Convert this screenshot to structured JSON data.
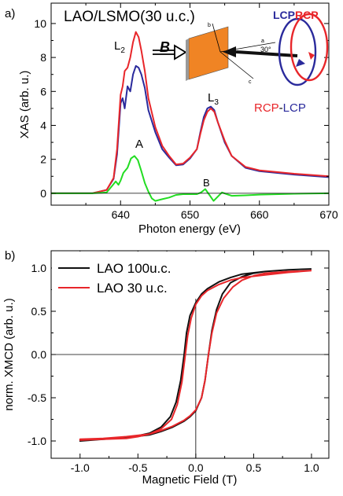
{
  "chart_data": [
    {
      "panel_label": "a)",
      "type": "line",
      "title": "LAO/LSMO(30 u.c.)",
      "xlabel": "Photon energy (eV)",
      "ylabel": "XAS (arb. u.)",
      "xlim": [
        630,
        670
      ],
      "ylim": [
        -0.7,
        11.2
      ],
      "xticks": [
        "640",
        "650",
        "660",
        "670"
      ],
      "yticks": [
        "0",
        "2",
        "4",
        "6",
        "8",
        "10"
      ],
      "annotations": {
        "l2": "L",
        "l2_sub": "2",
        "l3": "L",
        "l3_sub": "3",
        "peak_a": "A",
        "peak_b": "B",
        "field": "B",
        "lcp": "LCP",
        "rcp": "RCP",
        "diff_rcp": "RCP",
        "diff_dash": "-",
        "diff_lcp": "LCP",
        "axis_a": "a",
        "axis_b": "b",
        "axis_c": "c",
        "angle": "30°"
      },
      "colors": {
        "rcp": "#e8262a",
        "lcp": "#2a2a9c",
        "diff": "#22dd22",
        "sample": "#f08424"
      },
      "series": [
        {
          "name": "RCP",
          "x": [
            630,
            636,
            638,
            639,
            639.5,
            640,
            640.3,
            640.6,
            641,
            641.4,
            641.8,
            642.2,
            642.6,
            643,
            643.5,
            644,
            645,
            646,
            647,
            648,
            649,
            650,
            651,
            651.5,
            652,
            652.5,
            653,
            653.5,
            654,
            655,
            656,
            658,
            660,
            665,
            670
          ],
          "y": [
            0,
            0.01,
            0.2,
            0.9,
            2.6,
            5.8,
            6.3,
            7.2,
            7.4,
            8.0,
            8.9,
            9.5,
            9.2,
            8.4,
            7.2,
            5.6,
            3.9,
            2.8,
            2.2,
            1.7,
            1.75,
            2.1,
            2.6,
            3.5,
            4.3,
            4.8,
            5.0,
            4.8,
            4.2,
            3.1,
            2.2,
            1.55,
            1.35,
            1.15,
            1.0
          ]
        },
        {
          "name": "LCP",
          "x": [
            630,
            636,
            638,
            639,
            639.5,
            640,
            640.3,
            640.6,
            641,
            641.4,
            641.8,
            642.2,
            642.6,
            643,
            643.5,
            644,
            645,
            646,
            647,
            648,
            649,
            650,
            651,
            651.5,
            652,
            652.5,
            653,
            653.5,
            654,
            655,
            656,
            658,
            660,
            665,
            670
          ],
          "y": [
            0,
            0.01,
            0.2,
            0.85,
            2.3,
            5.3,
            5.6,
            5.0,
            6.3,
            6.0,
            7.0,
            7.5,
            7.4,
            7.0,
            6.2,
            4.9,
            3.6,
            2.6,
            2.1,
            1.65,
            1.7,
            2.05,
            2.6,
            3.6,
            4.5,
            5.0,
            5.1,
            4.9,
            4.2,
            3.0,
            2.2,
            1.5,
            1.3,
            1.1,
            0.95
          ]
        },
        {
          "name": "RCP-LCP",
          "x": [
            630,
            636,
            638,
            638.8,
            639.3,
            639.7,
            640,
            640.4,
            641,
            641.5,
            642,
            642.5,
            643,
            643.5,
            644,
            644.5,
            645,
            646,
            647,
            648,
            649,
            650,
            651,
            651.6,
            652.2,
            652.8,
            653.4,
            654,
            654.6,
            655.3,
            656,
            658,
            660,
            665,
            670
          ],
          "y": [
            0,
            0,
            0.05,
            0.45,
            0.7,
            0.5,
            0.75,
            1.2,
            1.5,
            2.05,
            2.2,
            1.95,
            1.3,
            0.6,
            0.1,
            -0.3,
            -0.45,
            -0.35,
            -0.25,
            -0.1,
            -0.05,
            -0.05,
            -0.05,
            0.05,
            0.25,
            -0.1,
            -0.45,
            -0.2,
            0.05,
            -0.05,
            -0.15,
            -0.12,
            -0.08,
            -0.03,
            0
          ]
        }
      ]
    },
    {
      "panel_label": "b)",
      "type": "line",
      "xlabel": "Magnetic Field (T)",
      "ylabel": "norm. XMCD (arb. u.)",
      "xlim": [
        -1.25,
        1.15
      ],
      "ylim": [
        -1.2,
        1.2
      ],
      "xticks": [
        "-1.0",
        "-0.5",
        "0.0",
        "0.5",
        "1.0"
      ],
      "yticks": [
        "-1.0",
        "-0.5",
        "0.0",
        "0.5",
        "1.0"
      ],
      "legend_position": "top-left",
      "colors": {
        "lao100": "#111111",
        "lao30": "#e8262a"
      },
      "series": [
        {
          "name": "LAO 100u.c.",
          "x_down": [
            1.0,
            0.8,
            0.6,
            0.4,
            0.3,
            0.2,
            0.1,
            0.05,
            0.0,
            -0.05,
            -0.08,
            -0.1,
            -0.13,
            -0.17,
            -0.22,
            -0.3,
            -0.4,
            -0.5,
            -0.6,
            -0.8,
            -1.0
          ],
          "y_down": [
            0.99,
            0.98,
            0.96,
            0.93,
            0.89,
            0.84,
            0.76,
            0.7,
            0.6,
            0.45,
            0.25,
            0.0,
            -0.3,
            -0.55,
            -0.72,
            -0.84,
            -0.91,
            -0.94,
            -0.96,
            -0.98,
            -1.0
          ],
          "x_up": [
            -1.0,
            -0.8,
            -0.6,
            -0.4,
            -0.3,
            -0.2,
            -0.1,
            -0.05,
            0.0,
            0.05,
            0.08,
            0.11,
            0.14,
            0.18,
            0.23,
            0.3,
            0.4,
            0.5,
            0.6,
            0.8,
            1.0
          ],
          "y_up": [
            -1.0,
            -0.98,
            -0.96,
            -0.93,
            -0.89,
            -0.84,
            -0.77,
            -0.72,
            -0.65,
            -0.5,
            -0.3,
            0.0,
            0.28,
            0.52,
            0.7,
            0.83,
            0.9,
            0.94,
            0.96,
            0.98,
            0.99
          ]
        },
        {
          "name": "LAO 30 u.c.",
          "x_down": [
            1.0,
            0.8,
            0.6,
            0.4,
            0.3,
            0.2,
            0.1,
            0.05,
            0.0,
            -0.04,
            -0.07,
            -0.09,
            -0.12,
            -0.16,
            -0.21,
            -0.3,
            -0.4,
            -0.5,
            -0.6,
            -0.8,
            -1.0
          ],
          "y_down": [
            0.97,
            0.95,
            0.92,
            0.89,
            0.86,
            0.81,
            0.74,
            0.68,
            0.58,
            0.42,
            0.22,
            0.0,
            -0.32,
            -0.58,
            -0.75,
            -0.86,
            -0.92,
            -0.95,
            -0.97,
            -0.98,
            -0.99
          ],
          "x_up": [
            -1.0,
            -0.8,
            -0.6,
            -0.4,
            -0.3,
            -0.2,
            -0.1,
            -0.05,
            0.0,
            0.05,
            0.08,
            0.11,
            0.14,
            0.18,
            0.24,
            0.32,
            0.4,
            0.5,
            0.6,
            0.8,
            1.0
          ],
          "y_up": [
            -0.98,
            -0.97,
            -0.95,
            -0.92,
            -0.88,
            -0.83,
            -0.76,
            -0.71,
            -0.64,
            -0.5,
            -0.3,
            0.0,
            0.25,
            0.48,
            0.65,
            0.78,
            0.86,
            0.91,
            0.94,
            0.96,
            0.97
          ]
        }
      ]
    }
  ]
}
